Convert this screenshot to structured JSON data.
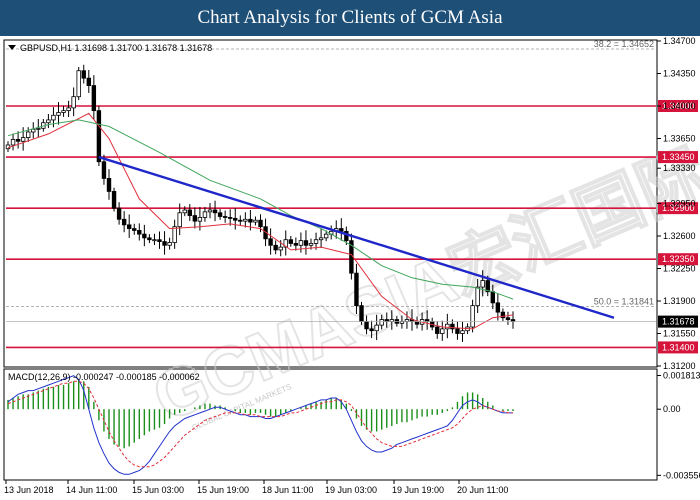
{
  "header": {
    "title": "Chart Analysis for Clients of GCM Asia"
  },
  "watermark": {
    "text": "GCMASIA宏汇国际",
    "subtext": "GLOBAL CAPITAL MARKETS"
  },
  "chart_data": {
    "type": "candlestick",
    "symbol_info": "GBPUSD,H1  1.31698 1.31700 1.31678 1.31678",
    "ylim": [
      1.312,
      1.347
    ],
    "y_ticks": [
      "1.34700",
      "1.34350",
      "1.34000",
      "1.33650",
      "1.33330",
      "1.32950",
      "1.32600",
      "1.32250",
      "1.31900",
      "1.31550",
      "1.31200"
    ],
    "x_ticks": [
      "13 Jun 2018",
      "14 Jun 11:00",
      "15 Jun 03:00",
      "15 Jun 19:00",
      "18 Jun 11:00",
      "19 Jun 03:00",
      "19 Jun 19:00",
      "20 Jun 11:00"
    ],
    "current_price": "1.31678",
    "price_values": [
      1.3358,
      1.3364,
      1.3362,
      1.3366,
      1.3372,
      1.3375,
      1.3376,
      1.3382,
      1.3385,
      1.339,
      1.3393,
      1.3395,
      1.3398,
      1.341,
      1.3438,
      1.343,
      1.3422,
      1.3395,
      1.334,
      1.3322,
      1.3308,
      1.329,
      1.3278,
      1.3272,
      1.3268,
      1.3266,
      1.3262,
      1.3258,
      1.3256,
      1.3256,
      1.3254,
      1.325,
      1.3253,
      1.327,
      1.3285,
      1.3288,
      1.3282,
      1.3276,
      1.328,
      1.3286,
      1.3288,
      1.3285,
      1.3281,
      1.328,
      1.3279,
      1.3277,
      1.3276,
      1.3278,
      1.3275,
      1.3277,
      1.327,
      1.3257,
      1.325,
      1.3245,
      1.3248,
      1.3256,
      1.3252,
      1.325,
      1.3255,
      1.325,
      1.3252,
      1.3256,
      1.3258,
      1.3262,
      1.3265,
      1.3268,
      1.3265,
      1.3255,
      1.322,
      1.3185,
      1.3168,
      1.316,
      1.3158,
      1.3164,
      1.317,
      1.3168,
      1.317,
      1.3166,
      1.3168,
      1.317,
      1.3168,
      1.3165,
      1.317,
      1.3168,
      1.3162,
      1.3155,
      1.316,
      1.3165,
      1.316,
      1.3155,
      1.3158,
      1.3162,
      1.3185,
      1.3205,
      1.3212,
      1.32,
      1.3188,
      1.3178,
      1.3172,
      1.317,
      1.3168
    ],
    "series": [
      {
        "name": "MA fast",
        "color": "#e0303c",
        "x": [
          0,
          8,
          16,
          20,
          26,
          32,
          38,
          44,
          50,
          56,
          62,
          68,
          74,
          80,
          86,
          92,
          96,
          100
        ],
        "values": [
          1.3355,
          1.337,
          1.3392,
          1.3365,
          1.33,
          1.3268,
          1.327,
          1.3273,
          1.3268,
          1.3245,
          1.3248,
          1.324,
          1.3195,
          1.317,
          1.3162,
          1.316,
          1.3172,
          1.3175
        ]
      },
      {
        "name": "MA slow",
        "color": "#3fa55a",
        "x": [
          0,
          8,
          14,
          20,
          30,
          40,
          50,
          56,
          62,
          68,
          74,
          80,
          86,
          92,
          96,
          100
        ],
        "values": [
          1.3368,
          1.338,
          1.3385,
          1.3378,
          1.335,
          1.332,
          1.33,
          1.3282,
          1.3268,
          1.325,
          1.3228,
          1.3215,
          1.3208,
          1.3205,
          1.32,
          1.3192
        ]
      }
    ],
    "horizontal_levels": [
      {
        "label": "1.34000",
        "value": 1.34
      },
      {
        "label": "1.33450",
        "value": 1.3345
      },
      {
        "label": "1.32900",
        "value": 1.329
      },
      {
        "label": "1.32350",
        "value": 1.3235
      },
      {
        "label": "1.31400",
        "value": 1.314
      }
    ],
    "fib_levels": [
      {
        "label": "38.2 = 1.34652",
        "value": 1.34652
      },
      {
        "label": "50.0 = 1.31841",
        "value": 1.31841
      }
    ],
    "trendline": {
      "x": [
        18,
        120
      ],
      "values": [
        1.3345,
        1.3172
      ],
      "color": "#1f27c9"
    },
    "macd": {
      "label": "MACD(12,26,9) -0.000247 -0.000185 -0.000062",
      "ylim": [
        -0.0037,
        0.002
      ],
      "y_ticks": [
        "0.001813",
        "0.00",
        "-0.003556"
      ],
      "histogram": [
        0.0005,
        0.0006,
        0.0007,
        0.0008,
        0.0008,
        0.0009,
        0.001,
        0.0011,
        0.0012,
        0.0012,
        0.0013,
        0.0013,
        0.0014,
        0.0015,
        0.0016,
        0.0015,
        0.0012,
        0.0004,
        -0.0006,
        -0.0012,
        -0.0016,
        -0.0019,
        -0.002,
        -0.0021,
        -0.002,
        -0.0018,
        -0.0016,
        -0.0014,
        -0.0012,
        -0.0011,
        -0.001,
        -0.0008,
        -0.0005,
        -0.0003,
        -0.0002,
        -0.0001,
        0.0,
        0.0001,
        0.0002,
        0.0003,
        0.0003,
        0.0002,
        0.0002,
        0.0001,
        0.0,
        -0.0001,
        -0.0002,
        -0.0002,
        -0.0003,
        -0.0002,
        -0.0002,
        -0.0003,
        -0.0004,
        -0.0004,
        -0.0003,
        -0.0002,
        -0.0001,
        0.0,
        0.0001,
        0.0002,
        0.0003,
        0.0004,
        0.0004,
        0.0005,
        0.0006,
        0.0006,
        0.0005,
        0.0003,
        -0.0001,
        -0.0005,
        -0.0009,
        -0.0011,
        -0.0012,
        -0.0012,
        -0.0011,
        -0.001,
        -0.0009,
        -0.0008,
        -0.0007,
        -0.0007,
        -0.0006,
        -0.0005,
        -0.0004,
        -0.0004,
        -0.0003,
        -0.0003,
        -0.0002,
        -0.0001,
        0.0001,
        0.0004,
        0.0007,
        0.0009,
        0.0009,
        0.0008,
        0.0006,
        0.0004,
        0.0002,
        0.0,
        -0.0001,
        -0.0001,
        -0.0001
      ],
      "main": [
        0.0004,
        0.0006,
        0.0008,
        0.0009,
        0.001,
        0.001,
        0.0011,
        0.0012,
        0.0013,
        0.0014,
        0.0015,
        0.0016,
        0.0017,
        0.0018,
        0.0016,
        0.001,
        0.0,
        -0.001,
        -0.0018,
        -0.0024,
        -0.0029,
        -0.0032,
        -0.0034,
        -0.0035,
        -0.0035,
        -0.0034,
        -0.0033,
        -0.0031,
        -0.0028,
        -0.0024,
        -0.002,
        -0.0016,
        -0.0012,
        -0.0009,
        -0.0007,
        -0.0005,
        -0.0004,
        -0.0003,
        -0.0002,
        -0.0001,
        0.0,
        0.0001,
        0.0001,
        0.0,
        -0.0001,
        -0.0002,
        -0.0003,
        -0.0003,
        -0.0004,
        -0.0004,
        -0.0004,
        -0.0005,
        -0.0005,
        -0.0004,
        -0.0003,
        -0.0002,
        -0.0001,
        0.0,
        0.0001,
        0.0002,
        0.0003,
        0.0004,
        0.0005,
        0.0005,
        0.0006,
        0.0006,
        0.0004,
        0.0,
        -0.0006,
        -0.0012,
        -0.0017,
        -0.002,
        -0.0022,
        -0.0023,
        -0.0023,
        -0.0022,
        -0.0021,
        -0.0019,
        -0.0018,
        -0.0017,
        -0.0016,
        -0.0015,
        -0.0014,
        -0.0013,
        -0.0012,
        -0.0011,
        -0.001,
        -0.0009,
        -0.0006,
        -0.0002,
        0.0002,
        0.0004,
        0.0005,
        0.0004,
        0.0002,
        0.0001,
        0.0,
        -0.0001,
        -0.0002,
        -0.0002,
        -0.0002
      ],
      "signal": [
        0.0003,
        0.0004,
        0.0005,
        0.0006,
        0.0007,
        0.0008,
        0.0009,
        0.001,
        0.0011,
        0.0012,
        0.0013,
        0.0014,
        0.0014,
        0.0015,
        0.0015,
        0.0014,
        0.0011,
        0.0006,
        0.0,
        -0.0006,
        -0.0012,
        -0.0017,
        -0.0021,
        -0.0025,
        -0.0028,
        -0.003,
        -0.0031,
        -0.0031,
        -0.0031,
        -0.003,
        -0.0028,
        -0.0026,
        -0.0023,
        -0.002,
        -0.0017,
        -0.0014,
        -0.0012,
        -0.001,
        -0.0008,
        -0.0006,
        -0.0005,
        -0.0004,
        -0.0003,
        -0.0002,
        -0.0002,
        -0.0002,
        -0.0002,
        -0.0003,
        -0.0003,
        -0.0003,
        -0.0004,
        -0.0004,
        -0.0004,
        -0.0004,
        -0.0004,
        -0.0003,
        -0.0002,
        -0.0002,
        -0.0001,
        0.0,
        0.0001,
        0.0002,
        0.0003,
        0.0004,
        0.0004,
        0.0005,
        0.0005,
        0.0004,
        0.0002,
        -0.0002,
        -0.0006,
        -0.001,
        -0.0013,
        -0.0016,
        -0.0018,
        -0.0019,
        -0.002,
        -0.002,
        -0.002,
        -0.0019,
        -0.0018,
        -0.0017,
        -0.0016,
        -0.0015,
        -0.0014,
        -0.0013,
        -0.0012,
        -0.0011,
        -0.001,
        -0.0008,
        -0.0005,
        -0.0002,
        0.0,
        0.0001,
        0.0002,
        0.0001,
        0.0,
        -0.0001,
        -0.0001,
        -0.0002,
        -0.0002
      ]
    },
    "colors": {
      "level": "#d6133b",
      "fib": "#9a9a9a",
      "bull": "#000000",
      "bear": "#000000",
      "hist": "#1a8f1a",
      "macd_main": "#2233cc",
      "macd_signal": "#e0303c"
    },
    "grid": false
  }
}
